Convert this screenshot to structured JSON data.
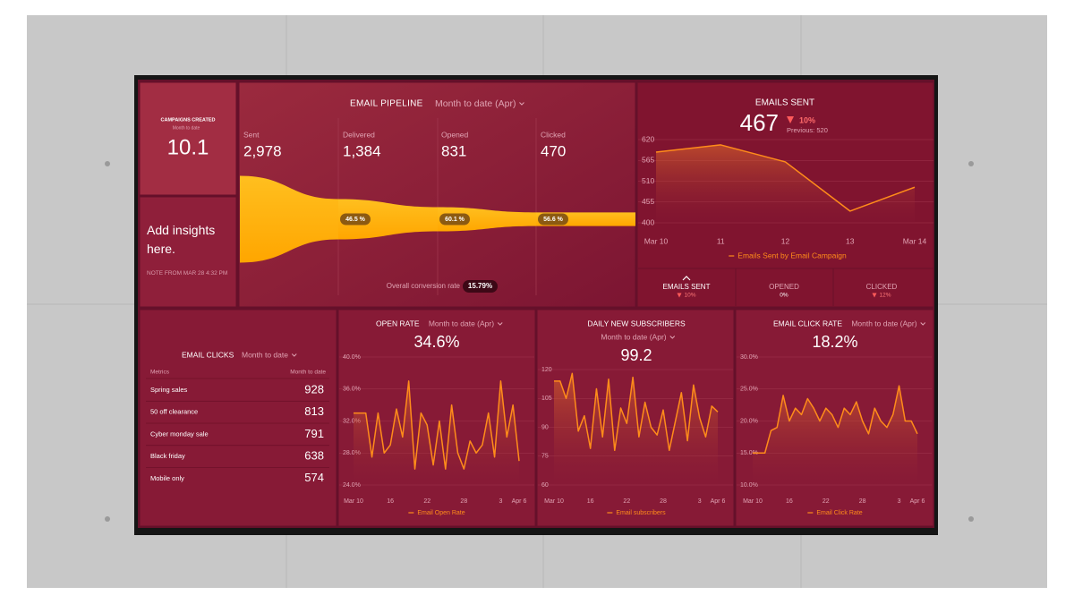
{
  "campaigns": {
    "title": "CAMPAIGNS CREATED",
    "period": "Month to date",
    "value": "10.1"
  },
  "insight": {
    "text": "Add insights here.",
    "note": "NOTE FROM MAR 28 4:32 PM"
  },
  "pipeline": {
    "title": "EMAIL PIPELINE",
    "period": "Month to date (Apr)",
    "stages": [
      {
        "name": "Sent",
        "value": 2978,
        "label": "2,978"
      },
      {
        "name": "Delivered",
        "value": 1384,
        "label": "1,384"
      },
      {
        "name": "Opened",
        "value": 831,
        "label": "831"
      },
      {
        "name": "Clicked",
        "value": 470,
        "label": "470"
      }
    ],
    "rates": [
      "46.5 %",
      "60.1 %",
      "56.6 %"
    ],
    "conversion_label": "Overall conversion rate",
    "conversion": "15.79%"
  },
  "emails_sent": {
    "title": "EMAILS SENT",
    "value": "467",
    "change": "10%",
    "trend": "down",
    "previous": "Previous: 520",
    "chart": {
      "type": "line",
      "categories": [
        "Mar 10",
        "11",
        "12",
        "13",
        "Mar 14"
      ],
      "series": [
        {
          "name": "Emails Sent by Email Campaign",
          "color": "#ff8c1a",
          "values": [
            587,
            606,
            561,
            431,
            494
          ]
        }
      ],
      "ylim": [
        400,
        620
      ],
      "yticks": [
        400,
        455,
        510,
        565,
        620
      ]
    },
    "kpis": [
      {
        "name": "EMAILS SENT",
        "change": "10%",
        "trend": "down"
      },
      {
        "name": "OPENED",
        "change": "0%"
      },
      {
        "name": "CLICKED",
        "change": "12%",
        "trend": "down"
      }
    ]
  },
  "email_clicks": {
    "title": "EMAIL CLICKS",
    "period": "Month to date",
    "columns": [
      "Metrics",
      "Month to date"
    ],
    "rows": [
      [
        "Spring sales",
        "928"
      ],
      [
        "50 off clearance",
        "813"
      ],
      [
        "Cyber monday sale",
        "791"
      ],
      [
        "Black friday",
        "638"
      ],
      [
        "Mobile only",
        "574"
      ]
    ]
  },
  "open_rate": {
    "title": "OPEN RATE",
    "period": "Month to date (Apr)",
    "value": "34.6%",
    "chart": {
      "type": "line",
      "categories": [
        "Mar 10",
        null,
        null,
        null,
        null,
        null,
        "16",
        null,
        null,
        null,
        null,
        null,
        "22",
        null,
        null,
        null,
        null,
        null,
        "28",
        null,
        null,
        null,
        null,
        null,
        "3",
        null,
        null,
        "Apr 6"
      ],
      "series": [
        {
          "name": "Email Open Rate",
          "color": "#ff8c1a",
          "values": [
            33,
            33,
            33,
            27.5,
            33,
            28,
            29,
            33.5,
            30,
            37,
            26,
            33,
            31.5,
            26.5,
            32,
            26,
            34,
            28,
            26,
            29.5,
            28,
            29,
            33,
            27.5,
            37,
            30,
            34,
            27
          ]
        }
      ],
      "ylim": [
        24,
        40
      ],
      "yticks": [
        {
          "value": 24,
          "label": "24.0%"
        },
        {
          "value": 28,
          "label": "28.0%"
        },
        {
          "value": 32,
          "label": "32.0%"
        },
        {
          "value": 36,
          "label": "36.0%"
        },
        {
          "value": 40,
          "label": "40.0%"
        }
      ]
    }
  },
  "subscribers": {
    "title": "DAILY NEW SUBSCRIBERS",
    "period": "Month to date (Apr)",
    "value": "99.2",
    "chart": {
      "type": "line",
      "categories": [
        "Mar 10",
        null,
        null,
        null,
        null,
        null,
        "16",
        null,
        null,
        null,
        null,
        null,
        "22",
        null,
        null,
        null,
        null,
        null,
        "28",
        null,
        null,
        null,
        null,
        null,
        "3",
        null,
        null,
        "Apr 6"
      ],
      "series": [
        {
          "name": "Email subscribers",
          "color": "#ff8c1a",
          "values": [
            114,
            114,
            105,
            118,
            88,
            96,
            79,
            110,
            85,
            115,
            78,
            100,
            92,
            116,
            85,
            103,
            90,
            86,
            99,
            78,
            93,
            108,
            83,
            112,
            95,
            85,
            101,
            98
          ]
        }
      ],
      "ylim": [
        60,
        120
      ],
      "yticks": [
        60,
        75,
        90,
        105,
        120
      ]
    }
  },
  "click_rate": {
    "title": "EMAIL CLICK RATE",
    "period": "Month to date (Apr)",
    "value": "18.2%",
    "chart": {
      "type": "line",
      "categories": [
        "Mar 10",
        null,
        null,
        null,
        null,
        null,
        "16",
        null,
        null,
        null,
        null,
        null,
        "22",
        null,
        null,
        null,
        null,
        null,
        "28",
        null,
        null,
        null,
        null,
        null,
        "3",
        null,
        null,
        "Apr 6"
      ],
      "series": [
        {
          "name": "Email Click Rate",
          "color": "#ff8c1a",
          "values": [
            15,
            15,
            15,
            18.5,
            19,
            24,
            20,
            22,
            21,
            23.5,
            22,
            20,
            22,
            21,
            19,
            22,
            21,
            23,
            20,
            18,
            22,
            20,
            19,
            21,
            25.5,
            20,
            20,
            18
          ]
        }
      ],
      "ylim": [
        10,
        30
      ],
      "yticks": [
        {
          "value": 10,
          "label": "10.0%"
        },
        {
          "value": 15,
          "label": "15.0%"
        },
        {
          "value": 20,
          "label": "20.0%"
        },
        {
          "value": 25,
          "label": "25.0%"
        },
        {
          "value": 30,
          "label": "30.0%"
        }
      ]
    }
  }
}
